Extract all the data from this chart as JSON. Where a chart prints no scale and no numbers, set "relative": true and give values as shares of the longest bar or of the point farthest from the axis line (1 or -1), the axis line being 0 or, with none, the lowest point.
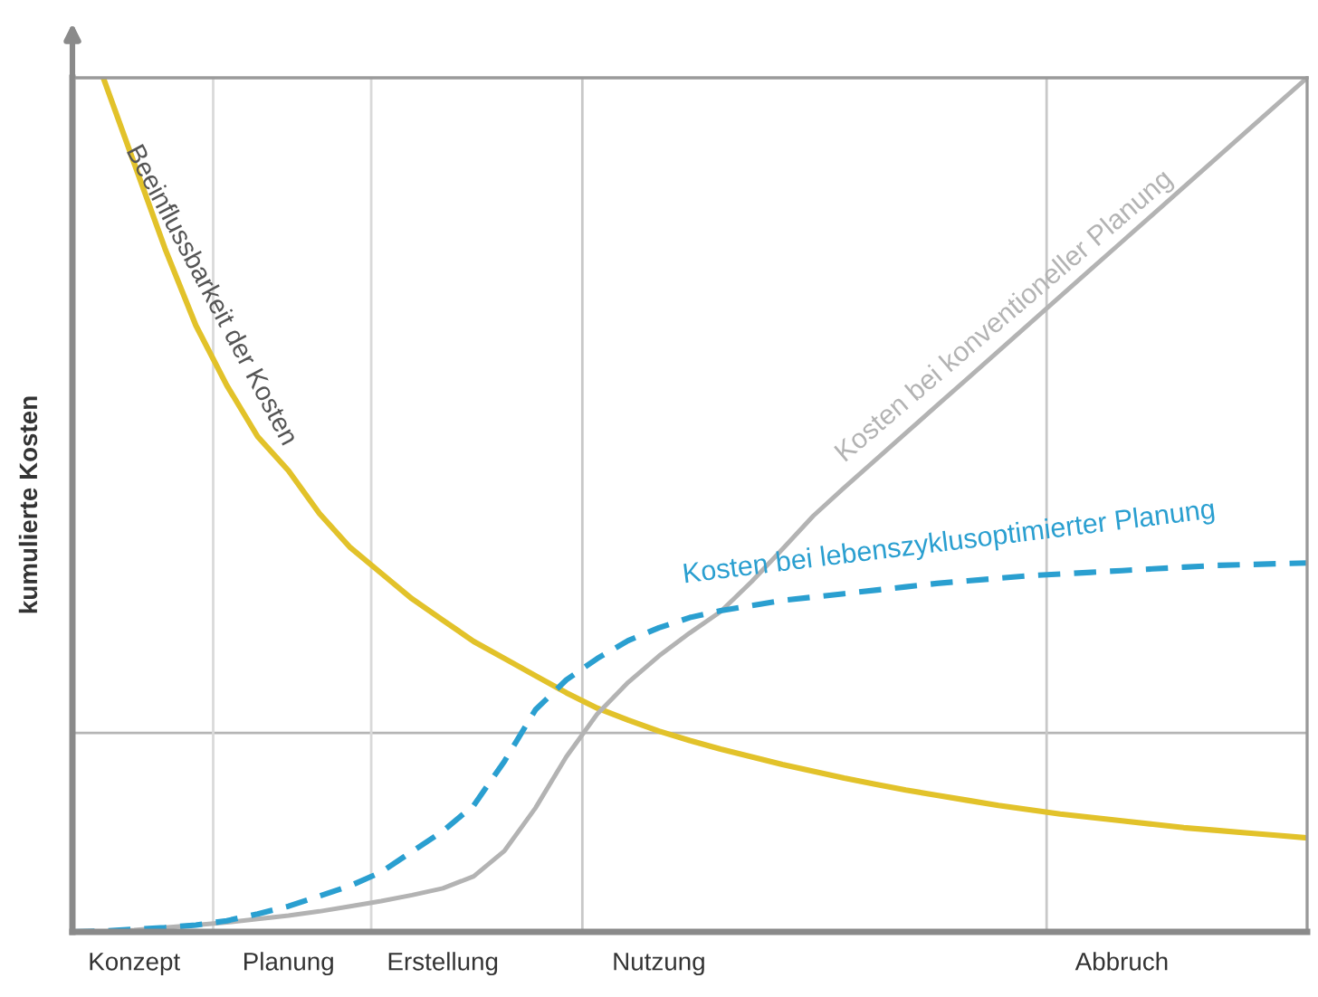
{
  "chart_data": {
    "type": "line",
    "relative": true,
    "ylabel": "kumulierte Kosten",
    "categories": [
      null,
      null,
      "Konzept",
      null,
      null,
      null,
      null,
      "Planung",
      null,
      null,
      null,
      null,
      "Erstellung",
      null,
      null,
      null,
      null,
      null,
      null,
      "Nutzung",
      null,
      null,
      null,
      null,
      null,
      null,
      null,
      null,
      null,
      null,
      null,
      null,
      null,
      null,
      "Abbruch",
      null,
      null,
      null,
      null,
      null,
      null
    ],
    "grid": false,
    "legend": false,
    "marker": "none",
    "ref_lines": [
      {
        "axis": "y",
        "value": 0.233,
        "color": "#b5b5b5"
      }
    ],
    "series": [
      {
        "name": "Beeinflussbarkeit der Kosten",
        "color": "#e2c22a",
        "line_style": "solid",
        "values": [
          null,
          1.0,
          0.9,
          0.8,
          0.71,
          0.64,
          0.58,
          0.54,
          0.49,
          0.45,
          0.42,
          0.39,
          0.365,
          0.34,
          0.32,
          0.3,
          0.28,
          0.262,
          0.248,
          0.235,
          0.224,
          0.214,
          0.205,
          0.196,
          0.188,
          0.18,
          0.173,
          0.166,
          0.16,
          0.154,
          0.148,
          0.143,
          0.138,
          0.134,
          0.13,
          0.126,
          0.122,
          0.119,
          0.116,
          0.113,
          0.11
        ]
      },
      {
        "name": "Kosten bei konventioneller Planung",
        "color": "#b3b3b3",
        "line_style": "solid",
        "values": [
          0,
          0,
          0.002,
          0.005,
          0.008,
          0.011,
          0.015,
          0.019,
          0.024,
          0.03,
          0.036,
          0.043,
          0.051,
          0.065,
          0.095,
          0.145,
          0.205,
          0.255,
          0.292,
          0.323,
          0.35,
          0.375,
          0.41,
          0.448,
          0.487,
          0.52,
          0.552,
          0.584,
          0.616,
          0.648,
          0.68,
          0.712,
          0.744,
          0.776,
          0.808,
          0.84,
          0.872,
          0.904,
          0.936,
          0.968,
          1.0
        ]
      },
      {
        "name": "Kosten bei lebenszyklusoptimierter Planung",
        "color": "#2a9fd0",
        "line_style": "dashed",
        "values": [
          0,
          0.001,
          0.003,
          0.005,
          0.008,
          0.013,
          0.021,
          0.03,
          0.042,
          0.054,
          0.07,
          0.094,
          0.118,
          0.148,
          0.2,
          0.26,
          0.295,
          0.32,
          0.341,
          0.356,
          0.368,
          0.376,
          0.382,
          0.388,
          0.392,
          0.396,
          0.4,
          0.404,
          0.408,
          0.411,
          0.414,
          0.417,
          0.419,
          0.421,
          0.423,
          0.425,
          0.427,
          0.429,
          0.43,
          0.431,
          0.432
        ]
      }
    ]
  }
}
